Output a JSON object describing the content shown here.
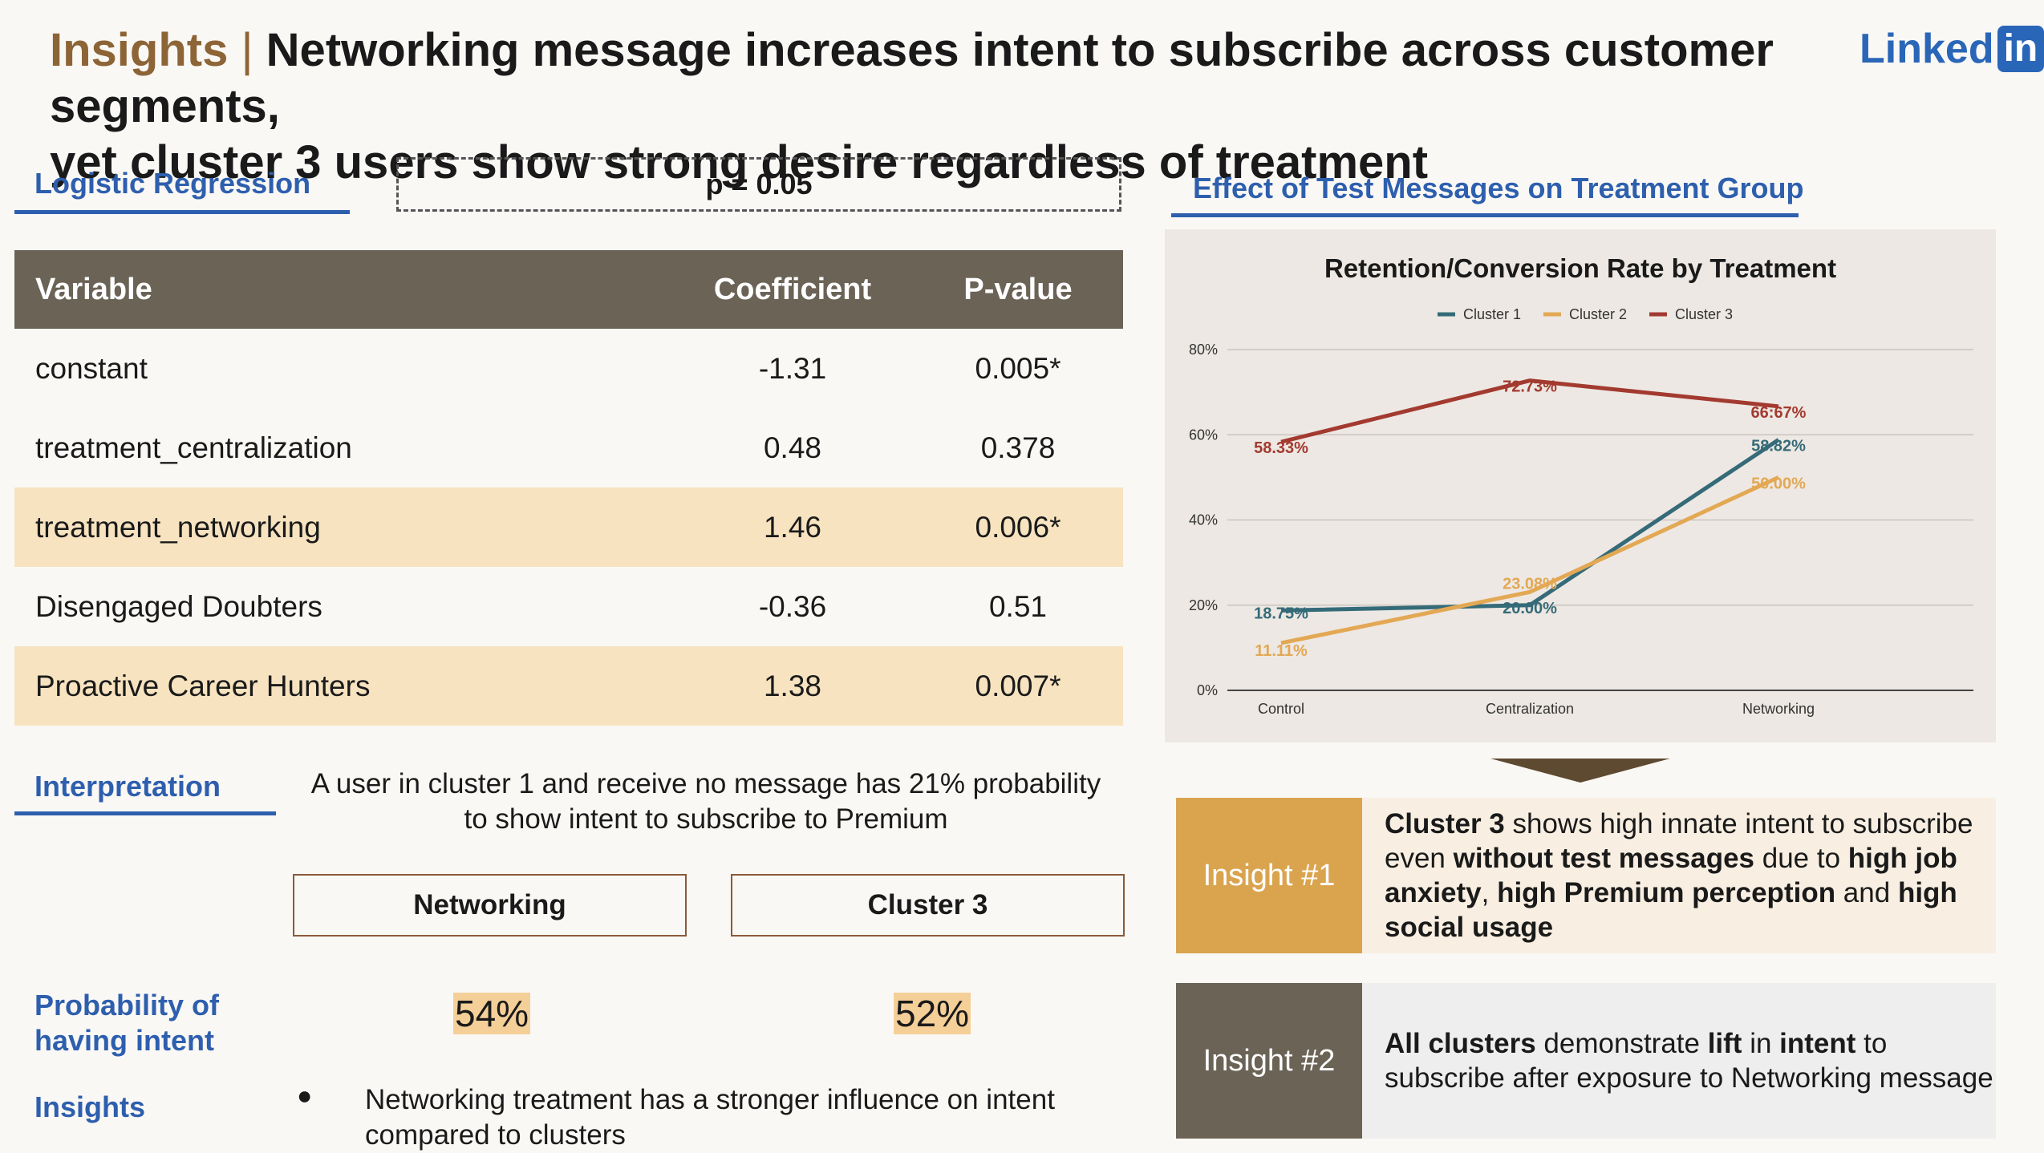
{
  "title": {
    "keyword": "Insights",
    "separator": "|",
    "line1": "Networking message increases intent to subscribe across customer segments,",
    "line2": "yet cluster 3 users show strong desire regardless of treatment"
  },
  "logo": {
    "text": "Linked",
    "badge": "in"
  },
  "regression": {
    "heading": "Logistic Regression",
    "pvalue_note": "p = 0.05",
    "columns": [
      "Variable",
      "Coefficient",
      "P-value"
    ],
    "rows": [
      {
        "variable": "constant",
        "coefficient": "-1.31",
        "pvalue": "0.005*",
        "highlight": false
      },
      {
        "variable": "treatment_centralization",
        "coefficient": "0.48",
        "pvalue": "0.378",
        "highlight": false
      },
      {
        "variable": "treatment_networking",
        "coefficient": "1.46",
        "pvalue": "0.006*",
        "highlight": true
      },
      {
        "variable": "Disengaged Doubters",
        "coefficient": "-0.36",
        "pvalue": "0.51",
        "highlight": false
      },
      {
        "variable": "Proactive Career Hunters",
        "coefficient": "1.38",
        "pvalue": "0.007*",
        "highlight": true
      }
    ]
  },
  "interpretation": {
    "heading": "Interpretation",
    "text": "A user in cluster 1 and receive no message has 21% probability to show intent to subscribe to Premium",
    "box1": "Networking",
    "box2": "Cluster 3",
    "prob_label": "Probability of having intent",
    "prob1": "54%",
    "prob2": "52%",
    "insights_label": "Insights",
    "bullet_symbol": "●",
    "bullet": "Networking treatment has a stronger influence on intent compared to clusters"
  },
  "effect": {
    "heading": "Effect of Test Messages on Treatment Group"
  },
  "chart_data": {
    "type": "line",
    "title": "Retention/Conversion Rate by Treatment",
    "categories": [
      "Control",
      "Centralization",
      "Networking"
    ],
    "ylim": [
      0,
      80
    ],
    "yticks": [
      "0%",
      "20%",
      "40%",
      "60%",
      "80%"
    ],
    "grid": true,
    "legend_position": "top",
    "series": [
      {
        "name": "Cluster 1",
        "color": "#356b78",
        "values": [
          18.75,
          20.0,
          58.82
        ],
        "labels": [
          "18.75%",
          "20.00%",
          "58.82%"
        ]
      },
      {
        "name": "Cluster 2",
        "color": "#e3a854",
        "values": [
          11.11,
          23.08,
          50.0
        ],
        "labels": [
          "11.11%",
          "23.08%",
          "50.00%"
        ]
      },
      {
        "name": "Cluster 3",
        "color": "#a33a30",
        "values": [
          58.33,
          72.73,
          66.67
        ],
        "labels": [
          "58.33%",
          "72.73%",
          "66:67%"
        ]
      }
    ]
  },
  "insights": [
    {
      "label": "Insight #1",
      "label_color": "#daa44f",
      "bg": "#f8efe2",
      "body": [
        {
          "t": "Cluster 3",
          "b": true
        },
        {
          "t": " shows high innate intent to subscribe even ",
          "b": false
        },
        {
          "t": "without test messages",
          "b": true
        },
        {
          "t": " due to ",
          "b": false
        },
        {
          "t": "high job anxiety",
          "b": true
        },
        {
          "t": ", ",
          "b": false
        },
        {
          "t": "high Premium perception",
          "b": true
        },
        {
          "t": " and ",
          "b": false
        },
        {
          "t": "high social usage",
          "b": true
        }
      ]
    },
    {
      "label": "Insight #2",
      "label_color": "#6b6356",
      "bg": "#eeeeee",
      "body": [
        {
          "t": "All clusters",
          "b": true
        },
        {
          "t": " demonstrate ",
          "b": false
        },
        {
          "t": "lift",
          "b": true
        },
        {
          "t": " in ",
          "b": false
        },
        {
          "t": "intent",
          "b": true
        },
        {
          "t": " to subscribe after exposure to Networking message",
          "b": false
        }
      ]
    }
  ]
}
